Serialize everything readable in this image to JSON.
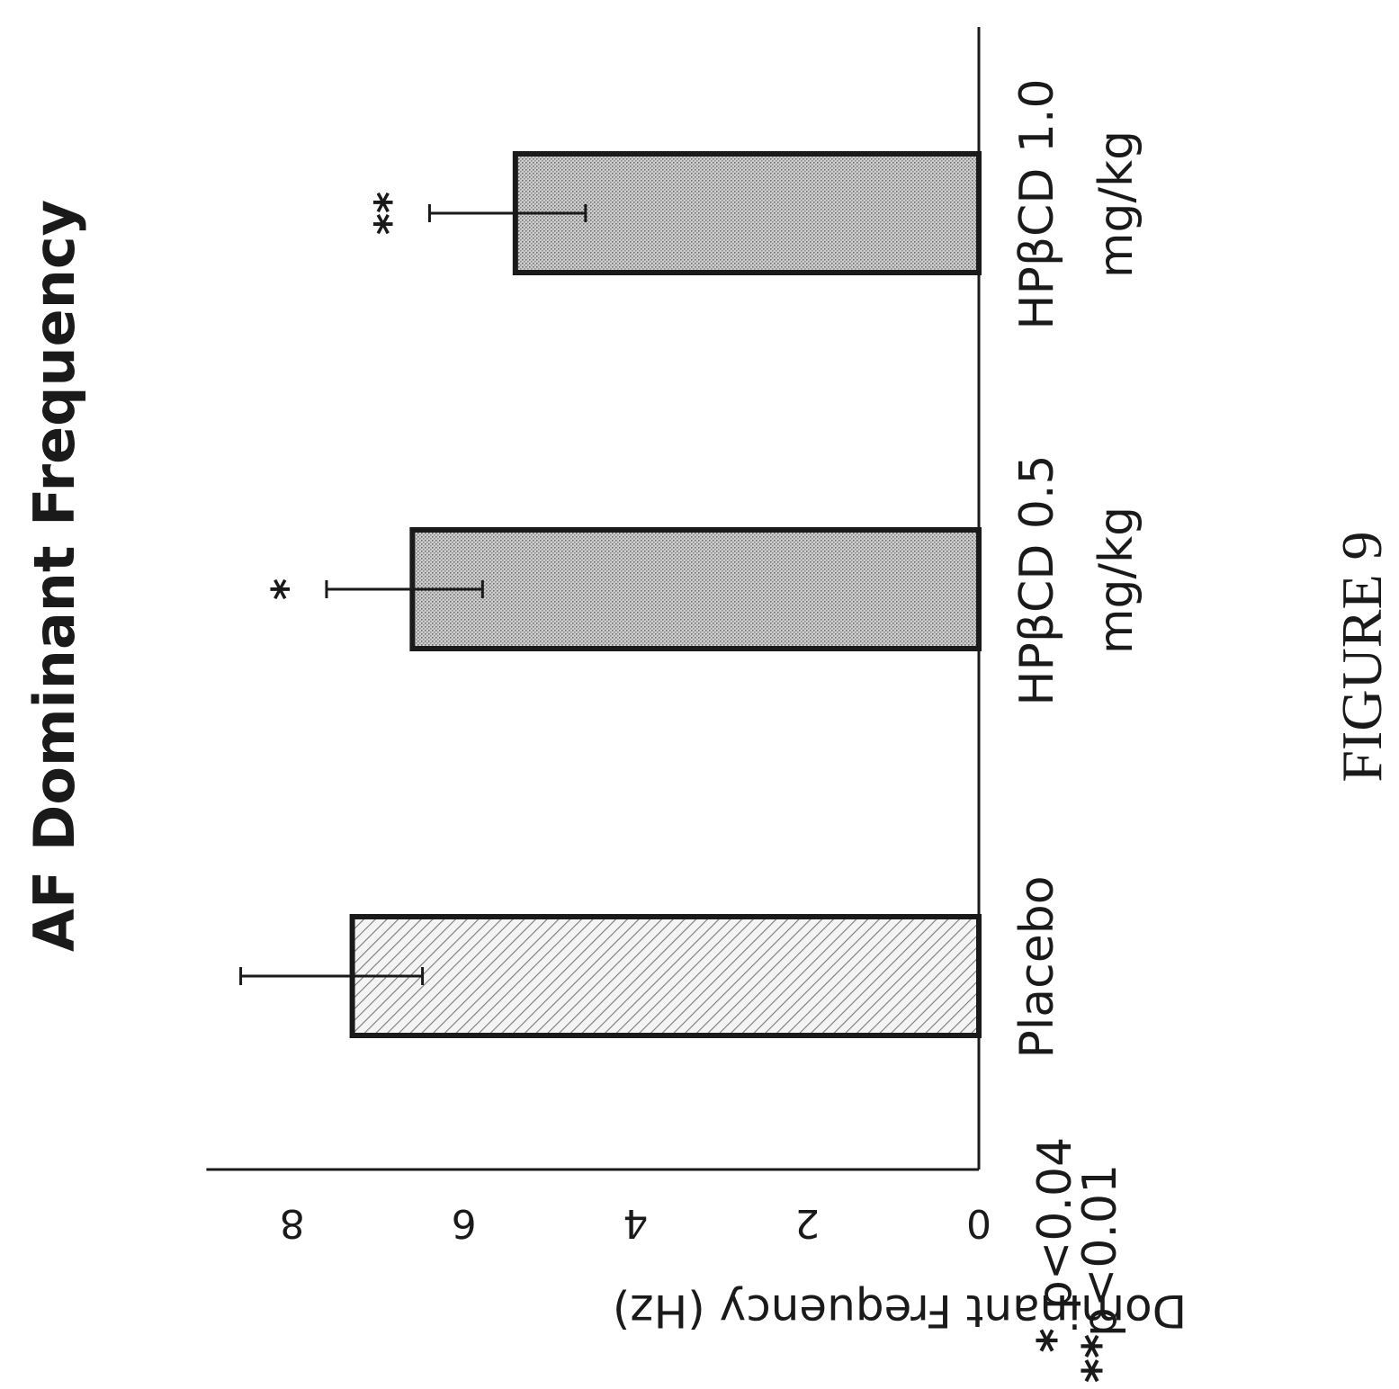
{
  "chart_data": {
    "type": "bar",
    "orientation": "rotated-90-clockwise",
    "title": "AF Dominant Frequency",
    "ylabel": "Dominant Frequency (Hz)",
    "xlabel": "",
    "ylim": [
      0,
      9
    ],
    "ytick_labels": [
      "0",
      "2",
      "4",
      "6",
      "8"
    ],
    "categories": [
      "Placebo",
      "HPβCD 0.5 mg/kg",
      "HPβCD 1.0 mg/kg"
    ],
    "category_lines": [
      [
        "Placebo"
      ],
      [
        "HPβCD 0.5",
        "mg/kg"
      ],
      [
        "HPβCD 1.0",
        "mg/kg"
      ]
    ],
    "values": [
      7.3,
      6.6,
      5.4
    ],
    "errors": [
      1.3,
      1.0,
      1.0
    ],
    "fills": [
      "hatched",
      "stippled",
      "stippled"
    ],
    "significance": [
      "",
      "*",
      "**"
    ],
    "footnotes": [
      {
        "marker": "*",
        "text": "p<0.04"
      },
      {
        "marker": "**",
        "text": "p<0.01"
      }
    ],
    "grid": false,
    "legend": "none"
  },
  "figure_label": "FIGURE 9",
  "colors": {
    "ink": "#1a1a1a",
    "bar_fill": "#c8c8c8",
    "hatch": "#8a8a8a"
  }
}
